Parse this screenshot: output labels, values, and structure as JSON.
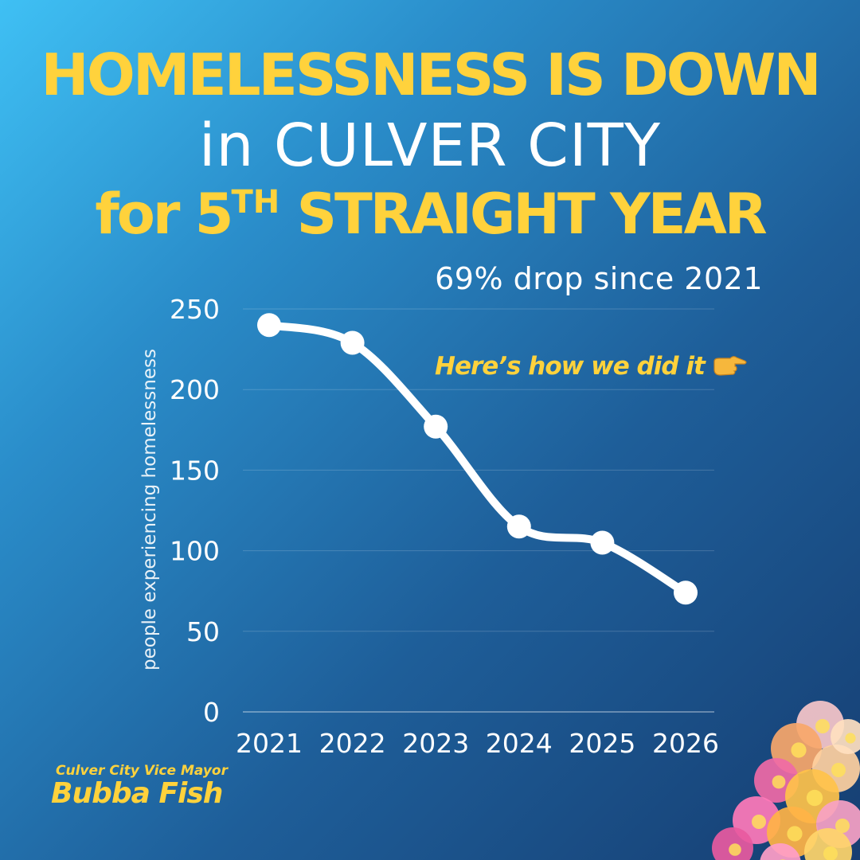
{
  "header": {
    "line1": "HOMELESSNESS IS DOWN",
    "line2": "in CULVER CITY",
    "line3_prefix": "for 5",
    "line3_sup": "TH",
    "line3_suffix": " STRAIGHT YEAR"
  },
  "subtitle": "69% drop since 2021",
  "callout": {
    "text": "Here’s how we did it",
    "icon": "pointing-right-hand-icon"
  },
  "signature": {
    "role": "Culver City Vice Mayor",
    "name": "Bubba Fish"
  },
  "decoration": "flower-cluster",
  "colors": {
    "accent": "#ffd23c",
    "text": "#ffffff",
    "bg_top_left": "#3fc0f4",
    "bg_bottom_right": "#163e72"
  },
  "chart_data": {
    "type": "line",
    "categories": [
      "2021",
      "2022",
      "2023",
      "2024",
      "2025",
      "2026"
    ],
    "series": [
      {
        "values": [
          240,
          229,
          177,
          115,
          105,
          74
        ]
      }
    ],
    "ylabel": "people experiencing homelessness",
    "ylim": [
      0,
      250
    ],
    "yticks": [
      0,
      50,
      100,
      150,
      200,
      250
    ],
    "grid": true,
    "smooth": true,
    "markers": true
  }
}
